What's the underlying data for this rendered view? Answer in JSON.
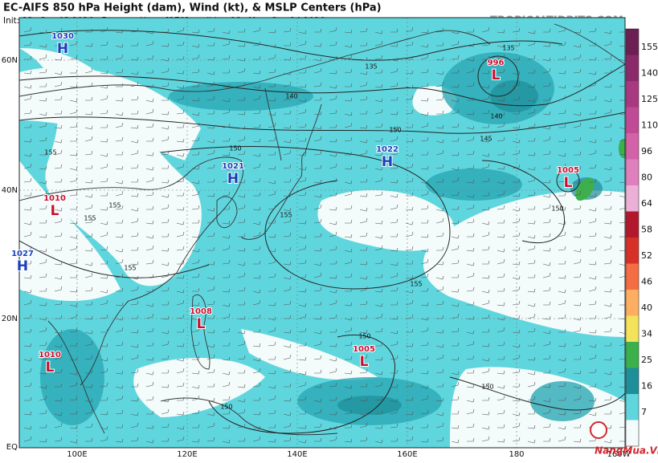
{
  "header": {
    "title": "EC-AIFS 850 hPa Height (dam), Wind (kt), & MSLP Centers (hPa)",
    "subtitle": "Init: 12z Sep 03 2026   Forecast Hour: [270]   valid at 18z Mon, Sep 14 2026",
    "credit": "TROPICALTIDBITS.COM"
  },
  "lat_labels": [
    "60N",
    "40N",
    "20N",
    "EQ"
  ],
  "lon_labels": [
    "100E",
    "120E",
    "140E",
    "160E",
    "180",
    "160W"
  ],
  "centers": [
    {
      "pressure": "1030",
      "letter": "H"
    },
    {
      "pressure": "1021",
      "letter": "H"
    },
    {
      "pressure": "1022",
      "letter": "H"
    },
    {
      "pressure": "996",
      "letter": "L"
    },
    {
      "pressure": "1005",
      "letter": "L"
    },
    {
      "pressure": "1010",
      "letter": "L"
    },
    {
      "pressure": "1027",
      "letter": "H"
    },
    {
      "pressure": "1008",
      "letter": "L"
    },
    {
      "pressure": "1005",
      "letter": "L"
    },
    {
      "pressure": "1010",
      "letter": "L"
    }
  ],
  "contour_labels": [
    "135",
    "135",
    "140",
    "140",
    "145",
    "150",
    "150",
    "150",
    "150",
    "150",
    "150",
    "155",
    "155",
    "155",
    "155",
    "155",
    "155"
  ],
  "colorbar_labels": [
    "155",
    "140",
    "125",
    "110",
    "96",
    "80",
    "64",
    "58",
    "52",
    "46",
    "40",
    "34",
    "25",
    "16",
    "7"
  ],
  "watermark": "NangMua.VN"
}
